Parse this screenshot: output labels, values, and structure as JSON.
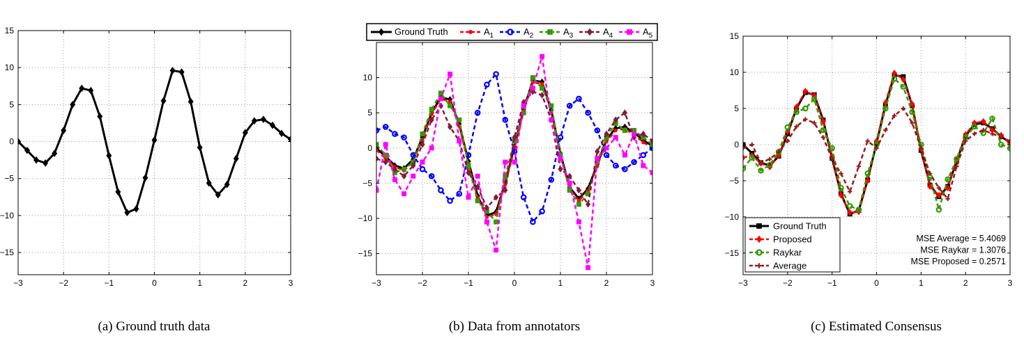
{
  "chart_data": [
    {
      "type": "line",
      "caption": "(a) Ground truth data",
      "xlim": [
        -3,
        3
      ],
      "ylim": [
        -18,
        15
      ],
      "xticks": [
        -3,
        -2,
        -1,
        0,
        1,
        2,
        3
      ],
      "yticks": [
        -15,
        -10,
        -5,
        0,
        5,
        10,
        15
      ],
      "grid": true,
      "series": [
        {
          "color": "#000000",
          "marker": "diamond",
          "x": [
            -3.0,
            -2.8,
            -2.6,
            -2.4,
            -2.2,
            -2.0,
            -1.8,
            -1.6,
            -1.4,
            -1.2,
            -1.0,
            -0.8,
            -0.6,
            -0.4,
            -0.2,
            0.0,
            0.2,
            0.4,
            0.6,
            0.8,
            1.0,
            1.2,
            1.4,
            1.6,
            1.8,
            2.0,
            2.2,
            2.4,
            2.6,
            2.8,
            3.0
          ],
          "y": [
            0.0,
            -1.2,
            -2.5,
            -2.9,
            -1.6,
            1.5,
            5.0,
            7.2,
            6.9,
            3.4,
            -1.9,
            -6.8,
            -9.6,
            -9.1,
            -4.9,
            0.2,
            5.5,
            9.6,
            9.4,
            5.4,
            -0.8,
            -5.6,
            -7.2,
            -5.8,
            -2.3,
            1.2,
            2.8,
            3.0,
            2.2,
            1.1,
            0.3
          ]
        }
      ]
    },
    {
      "type": "line",
      "caption": "(b) Data from annotators",
      "xlim": [
        -3,
        3
      ],
      "ylim": [
        -18,
        15
      ],
      "xticks": [
        -3,
        -2,
        -1,
        0,
        1,
        2,
        3
      ],
      "yticks": [
        -15,
        -10,
        -5,
        0,
        5,
        10
      ],
      "grid": true,
      "legend_position": "top",
      "series": [
        {
          "name": "Ground Truth",
          "color": "#000000",
          "marker": "diamond",
          "dash": "solid",
          "x": [
            -3.0,
            -2.8,
            -2.6,
            -2.4,
            -2.2,
            -2.0,
            -1.8,
            -1.6,
            -1.4,
            -1.2,
            -1.0,
            -0.8,
            -0.6,
            -0.4,
            -0.2,
            0.0,
            0.2,
            0.4,
            0.6,
            0.8,
            1.0,
            1.2,
            1.4,
            1.6,
            1.8,
            2.0,
            2.2,
            2.4,
            2.6,
            2.8,
            3.0
          ],
          "y": [
            0.0,
            -1.2,
            -2.5,
            -2.9,
            -1.6,
            1.5,
            5.0,
            7.2,
            6.9,
            3.4,
            -1.9,
            -6.8,
            -9.6,
            -9.1,
            -4.9,
            0.2,
            5.5,
            9.6,
            9.4,
            5.4,
            -0.8,
            -5.6,
            -7.2,
            -5.8,
            -2.3,
            1.2,
            2.8,
            3.0,
            2.2,
            1.1,
            0.3
          ]
        },
        {
          "name": "A",
          "sub": "1",
          "color": "#ff0000",
          "marker": "dot",
          "dash": "dashed",
          "x": [
            -3.0,
            -2.8,
            -2.6,
            -2.4,
            -2.2,
            -2.0,
            -1.8,
            -1.6,
            -1.4,
            -1.2,
            -1.0,
            -0.8,
            -0.6,
            -0.4,
            -0.2,
            0.0,
            0.2,
            0.4,
            0.6,
            0.8,
            1.0,
            1.2,
            1.4,
            1.6,
            1.8,
            2.0,
            2.2,
            2.4,
            2.6,
            2.8,
            3.0
          ],
          "y": [
            -0.3,
            -1.5,
            -2.7,
            -3.2,
            -1.9,
            1.2,
            4.8,
            7.0,
            6.6,
            3.1,
            -2.2,
            -7.1,
            -9.8,
            -9.4,
            -5.2,
            -0.1,
            5.2,
            9.3,
            9.1,
            5.1,
            -1.1,
            -5.9,
            -7.5,
            -6.1,
            -2.6,
            0.9,
            2.5,
            2.7,
            1.9,
            0.8,
            0.0
          ]
        },
        {
          "name": "A",
          "sub": "2",
          "color": "#0000ff",
          "marker": "circle",
          "dash": "dashed",
          "x": [
            -3.0,
            -2.8,
            -2.6,
            -2.4,
            -2.2,
            -2.0,
            -1.8,
            -1.6,
            -1.4,
            -1.2,
            -1.0,
            -0.8,
            -0.6,
            -0.4,
            -0.2,
            0.0,
            0.2,
            0.4,
            0.6,
            0.8,
            1.0,
            1.2,
            1.4,
            1.6,
            1.8,
            2.0,
            2.2,
            2.4,
            2.6,
            2.8,
            3.0
          ],
          "y": [
            2.5,
            3.0,
            2.0,
            1.5,
            -1.0,
            -3.0,
            -4.0,
            -6.0,
            -7.5,
            -6.5,
            -1.0,
            5.0,
            9.0,
            10.5,
            4.0,
            -0.5,
            -7.0,
            -10.5,
            -9.0,
            -4.5,
            1.5,
            6.0,
            7.0,
            5.0,
            2.5,
            -1.0,
            -2.5,
            -3.0,
            -2.0,
            -1.0,
            0.0
          ]
        },
        {
          "name": "A",
          "sub": "3",
          "color": "#339900",
          "marker": "square",
          "dash": "dashed",
          "x": [
            -3.0,
            -2.8,
            -2.6,
            -2.4,
            -2.2,
            -2.0,
            -1.8,
            -1.6,
            -1.4,
            -1.2,
            -1.0,
            -0.8,
            -0.6,
            -0.4,
            -0.2,
            0.0,
            0.2,
            0.4,
            0.6,
            0.8,
            1.0,
            1.2,
            1.4,
            1.6,
            1.8,
            2.0,
            2.2,
            2.4,
            2.6,
            2.8,
            3.0
          ],
          "y": [
            0.5,
            -1.0,
            -3.5,
            -3.0,
            -2.0,
            2.0,
            5.5,
            7.8,
            6.0,
            4.0,
            -2.5,
            -7.5,
            -9.0,
            -10.5,
            -4.0,
            1.0,
            5.0,
            10.0,
            8.5,
            6.0,
            -1.0,
            -6.0,
            -8.0,
            -6.5,
            -2.0,
            1.5,
            3.5,
            2.5,
            2.5,
            1.5,
            0.5
          ]
        },
        {
          "name": "A",
          "sub": "4",
          "color": "#7f1d3d",
          "marker": "diamond",
          "dash": "dashed",
          "x": [
            -3.0,
            -2.8,
            -2.6,
            -2.4,
            -2.2,
            -2.0,
            -1.8,
            -1.6,
            -1.4,
            -1.2,
            -1.0,
            -0.8,
            -0.6,
            -0.4,
            -0.2,
            0.0,
            0.2,
            0.4,
            0.6,
            0.8,
            1.0,
            1.2,
            1.4,
            1.6,
            1.8,
            2.0,
            2.2,
            2.4,
            2.6,
            2.8,
            3.0
          ],
          "y": [
            -1.5,
            -2.0,
            -3.0,
            -4.0,
            -2.5,
            0.5,
            4.0,
            6.0,
            3.0,
            1.0,
            -3.5,
            -5.5,
            -8.5,
            -7.0,
            -6.0,
            1.5,
            6.5,
            8.0,
            7.5,
            4.0,
            -3.0,
            -4.0,
            -6.0,
            -8.0,
            -0.5,
            2.0,
            4.0,
            5.0,
            1.5,
            2.0,
            1.0
          ]
        },
        {
          "name": "A",
          "sub": "5",
          "color": "#ff00ff",
          "marker": "square",
          "dash": "dashed",
          "x": [
            -3.0,
            -2.8,
            -2.6,
            -2.4,
            -2.2,
            -2.0,
            -1.8,
            -1.6,
            -1.4,
            -1.2,
            -1.0,
            -0.8,
            -0.6,
            -0.4,
            -0.2,
            0.0,
            0.2,
            0.4,
            0.6,
            0.8,
            1.0,
            1.2,
            1.4,
            1.6,
            1.8,
            2.0,
            2.2,
            2.4,
            2.6,
            2.8,
            3.0
          ],
          "y": [
            -6.0,
            0.5,
            -4.5,
            -6.5,
            -4.0,
            -2.0,
            0.0,
            7.0,
            10.5,
            1.0,
            -7.0,
            -4.0,
            -10.5,
            -14.5,
            -2.0,
            -2.0,
            6.0,
            8.5,
            13.0,
            4.0,
            -1.5,
            -5.0,
            -10.5,
            -17.0,
            -1.5,
            0.0,
            1.5,
            -1.0,
            2.0,
            -2.5,
            -3.5
          ]
        }
      ]
    },
    {
      "type": "line",
      "caption": "(c) Estimated Consensus",
      "xlim": [
        -3,
        3
      ],
      "ylim": [
        -18,
        15
      ],
      "xticks": [
        -3,
        -2,
        -1,
        0,
        1,
        2,
        3
      ],
      "yticks": [
        -15,
        -10,
        -5,
        0,
        5,
        10,
        15
      ],
      "grid": true,
      "legend_position": "bottom-left",
      "annotations": [
        "MSE Average = 5.4069",
        "MSE Raykar = 1.3076",
        "MSE Proposed = 0.2571"
      ],
      "series": [
        {
          "name": "Ground Truth",
          "color": "#000000",
          "marker": "square",
          "dash": "solid",
          "x": [
            -3.0,
            -2.8,
            -2.6,
            -2.4,
            -2.2,
            -2.0,
            -1.8,
            -1.6,
            -1.4,
            -1.2,
            -1.0,
            -0.8,
            -0.6,
            -0.4,
            -0.2,
            0.0,
            0.2,
            0.4,
            0.6,
            0.8,
            1.0,
            1.2,
            1.4,
            1.6,
            1.8,
            2.0,
            2.2,
            2.4,
            2.6,
            2.8,
            3.0
          ],
          "y": [
            0.0,
            -1.2,
            -2.5,
            -2.9,
            -1.6,
            1.5,
            5.0,
            7.2,
            6.9,
            3.4,
            -1.9,
            -6.8,
            -9.6,
            -9.1,
            -4.9,
            0.2,
            5.5,
            9.6,
            9.4,
            5.4,
            -0.8,
            -5.6,
            -7.2,
            -5.8,
            -2.3,
            1.2,
            2.8,
            3.0,
            2.2,
            1.1,
            0.3
          ]
        },
        {
          "name": "Proposed",
          "color": "#ff0000",
          "marker": "diamond",
          "dash": "dashed",
          "x": [
            -3.0,
            -2.8,
            -2.6,
            -2.4,
            -2.2,
            -2.0,
            -1.8,
            -1.6,
            -1.4,
            -1.2,
            -1.0,
            -0.8,
            -0.6,
            -0.4,
            -0.2,
            0.0,
            0.2,
            0.4,
            0.6,
            0.8,
            1.0,
            1.2,
            1.4,
            1.6,
            1.8,
            2.0,
            2.2,
            2.4,
            2.6,
            2.8,
            3.0
          ],
          "y": [
            -1.8,
            -1.5,
            -2.6,
            -3.1,
            -1.5,
            1.8,
            5.2,
            7.4,
            6.8,
            3.2,
            -1.6,
            -7.0,
            -9.4,
            -9.3,
            -5.0,
            0.5,
            5.8,
            9.9,
            9.0,
            5.6,
            -0.6,
            -5.8,
            -7.0,
            -6.0,
            -2.0,
            1.4,
            3.0,
            3.2,
            2.0,
            1.3,
            0.1
          ]
        },
        {
          "name": "Raykar",
          "color": "#339900",
          "marker": "circle",
          "dash": "dashed",
          "x": [
            -3.0,
            -2.8,
            -2.6,
            -2.4,
            -2.2,
            -2.0,
            -1.8,
            -1.6,
            -1.4,
            -1.2,
            -1.0,
            -0.8,
            -0.6,
            -0.4,
            -0.2,
            0.0,
            0.2,
            0.4,
            0.6,
            0.8,
            1.0,
            1.2,
            1.4,
            1.6,
            1.8,
            2.0,
            2.2,
            2.4,
            2.6,
            2.8,
            3.0
          ],
          "y": [
            -3.3,
            -1.8,
            -3.6,
            -2.8,
            -1.0,
            2.4,
            4.5,
            5.0,
            6.3,
            2.0,
            -0.5,
            -6.0,
            -8.5,
            -9.0,
            -4.0,
            0.0,
            5.0,
            9.1,
            8.0,
            4.5,
            0.0,
            -4.5,
            -9.0,
            -4.8,
            -2.0,
            1.0,
            2.5,
            1.6,
            3.6,
            0.0,
            -0.5
          ]
        },
        {
          "name": "Average",
          "color": "#991a1a",
          "marker": "plus",
          "dash": "dashed",
          "x": [
            -3.0,
            -2.8,
            -2.6,
            -2.4,
            -2.2,
            -2.0,
            -1.8,
            -1.6,
            -1.4,
            -1.2,
            -1.0,
            -0.8,
            -0.6,
            -0.4,
            -0.2,
            0.0,
            0.2,
            0.4,
            0.6,
            0.8,
            1.0,
            1.2,
            1.4,
            1.6,
            1.8,
            2.0,
            2.2,
            2.4,
            2.6,
            2.8,
            3.0
          ],
          "y": [
            -0.5,
            0.0,
            -2.5,
            -2.0,
            -1.0,
            0.5,
            2.5,
            3.5,
            3.0,
            1.0,
            -2.0,
            -4.0,
            -6.5,
            -3.0,
            0.5,
            -0.5,
            2.0,
            4.0,
            5.0,
            3.0,
            -0.5,
            -4.0,
            -6.0,
            -7.5,
            -3.0,
            0.5,
            1.5,
            2.0,
            1.5,
            1.0,
            0.5
          ]
        }
      ]
    }
  ]
}
